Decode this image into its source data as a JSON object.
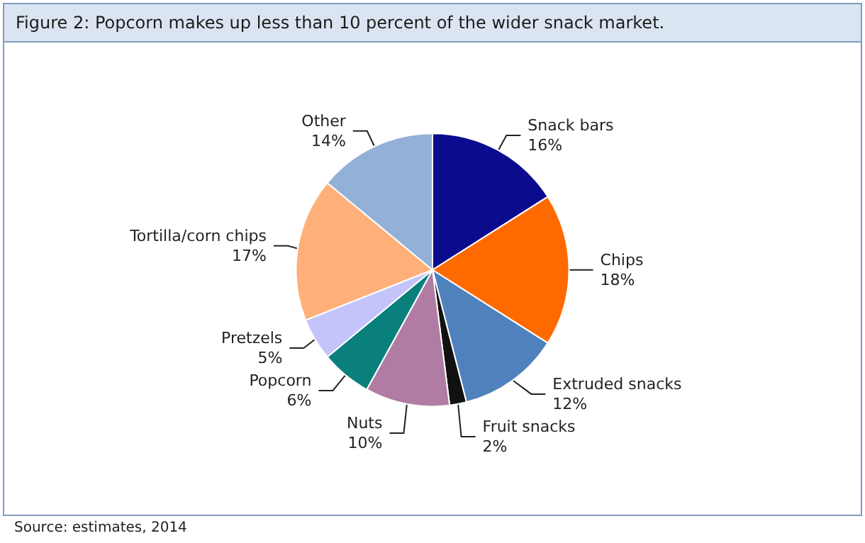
{
  "chart_data": {
    "type": "pie",
    "title": "Figure 2: Popcorn makes up less than 10 percent of the wider snack market.",
    "categories": [
      "Snack bars",
      "Chips",
      "Extruded snacks",
      "Fruit snacks",
      "Nuts",
      "Popcorn",
      "Pretzels",
      "Tortilla/corn chips",
      "Other"
    ],
    "values": [
      16,
      18,
      12,
      2,
      10,
      6,
      5,
      17,
      14
    ],
    "value_labels": [
      "16%",
      "18%",
      "12%",
      "2%",
      "10%",
      "6%",
      "5%",
      "17%",
      "14%"
    ],
    "colors": [
      "#0b0b8e",
      "#ff6a00",
      "#4f81bd",
      "#111111",
      "#b07ca3",
      "#0a807c",
      "#c4c4fa",
      "#ffb07a",
      "#93b1d6"
    ],
    "annotations": [
      "Source: estimates, 2014"
    ],
    "legend": false
  }
}
